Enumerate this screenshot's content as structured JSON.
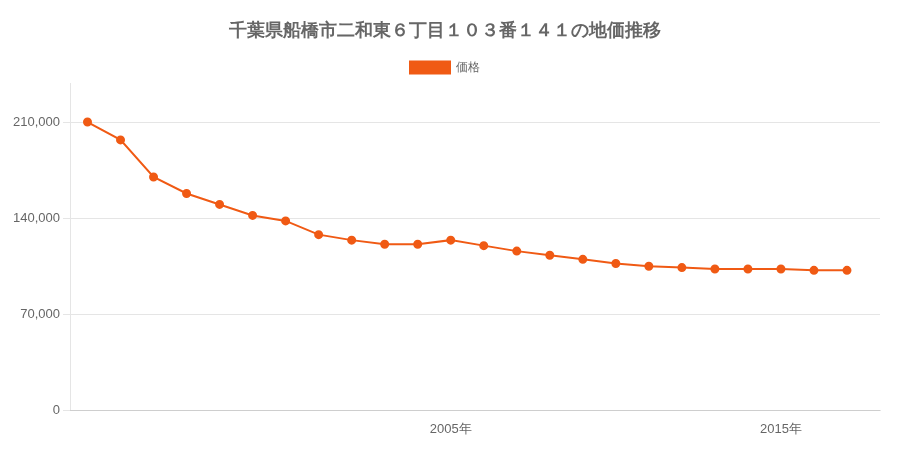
{
  "chart_data": {
    "type": "line",
    "title": "千葉県船橋市二和東６丁目１０３番１４１の地価推移",
    "x": [
      1994,
      1995,
      1996,
      1997,
      1998,
      1999,
      2000,
      2001,
      2002,
      2003,
      2004,
      2005,
      2006,
      2007,
      2008,
      2009,
      2010,
      2011,
      2012,
      2013,
      2014,
      2015,
      2016,
      2017
    ],
    "series": [
      {
        "name": "価格",
        "color": "#F05A14",
        "marker": "circle",
        "values": [
          210000,
          197000,
          170000,
          158000,
          150000,
          142000,
          138000,
          128000,
          124000,
          121000,
          121000,
          124000,
          120000,
          116000,
          113000,
          110000,
          107000,
          105000,
          104000,
          103000,
          103000,
          103000,
          102000,
          102000
        ]
      }
    ],
    "xlim": [
      1993.5,
      2018
    ],
    "xticks": [
      {
        "value": 2005,
        "label": "2005年"
      },
      {
        "value": 2015,
        "label": "2015年"
      }
    ],
    "ylim": [
      0,
      238000
    ],
    "yticks": [
      0,
      {
        "value": 70000,
        "label": "70,000"
      },
      {
        "value": 140000,
        "label": "140,000"
      },
      {
        "value": 210000,
        "label": "210,000"
      }
    ],
    "grid": "y",
    "legend": "top"
  }
}
